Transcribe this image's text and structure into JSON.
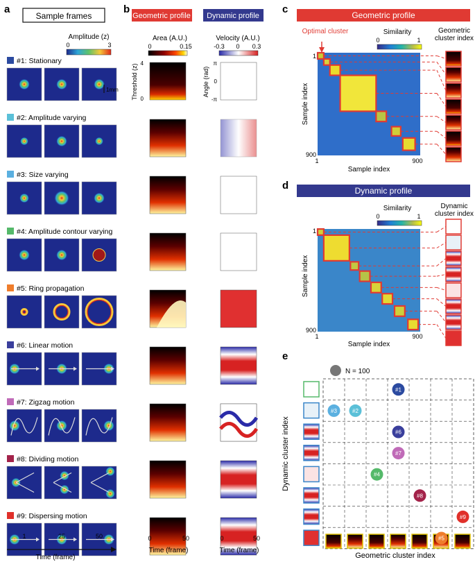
{
  "panels": {
    "a": "a",
    "b": "b",
    "c": "c",
    "d": "d",
    "e": "e"
  },
  "panel_a": {
    "header": "Sample frames",
    "colorbar": {
      "title": "Amplitude (z)",
      "min": "0",
      "max": "3"
    },
    "scalebar": "1mm",
    "patterns": [
      {
        "label": "#1: Stationary",
        "color": "#2b4aa0"
      },
      {
        "label": "#2: Amplitude varying",
        "color": "#5bc0d8"
      },
      {
        "label": "#3: Size varying",
        "color": "#5bb0e0"
      },
      {
        "label": "#4: Amplitude contour varying",
        "color": "#55b96a"
      },
      {
        "label": "#5: Ring propagation",
        "color": "#ef7d2c"
      },
      {
        "label": "#6: Linear motion",
        "color": "#3a3f9c"
      },
      {
        "label": "#7: Zigzag motion",
        "color": "#c06bb8"
      },
      {
        "label": "#8: Dividing motion",
        "color": "#a3234a"
      },
      {
        "label": "#9: Dispersing motion",
        "color": "#e0302a"
      }
    ],
    "frame_ticks": [
      "1",
      "25",
      "50"
    ],
    "xlabel": "Time (frame)"
  },
  "panel_b": {
    "geo_header": "Geometric profile",
    "dyn_header": "Dynamic profile",
    "geo_colorbar": {
      "title": "Area  (A.U.)",
      "min": "0",
      "max": "0.15"
    },
    "dyn_colorbar": {
      "title": "Velocity (A.U.)",
      "min": "-0.3",
      "mid": "0",
      "max": "0.3"
    },
    "geo_ylabel": "Threshold (z)",
    "geo_yticks": [
      "4",
      "0"
    ],
    "dyn_ylabel": "Angle (rad)",
    "dyn_yticks": [
      "π",
      "0",
      "-π"
    ],
    "xticks": [
      "0",
      "50"
    ],
    "xlabel": "Time (frame)"
  },
  "panel_c": {
    "header": "Geometric profile",
    "annotation": "Optimal cluster",
    "colorbar": {
      "title": "Similarity",
      "min": "0",
      "max": "1"
    },
    "side_title": "Geometric cluster index",
    "ylabel": "Sample index",
    "xlabel": "Sample index",
    "ticks": {
      "start": "1",
      "end": "900"
    }
  },
  "panel_d": {
    "header": "Dynamic profile",
    "colorbar": {
      "title": "Similarity",
      "min": "0",
      "max": "1"
    },
    "side_title": "Dynamic cluster index",
    "ylabel": "Sample index",
    "xlabel": "Sample index",
    "ticks": {
      "start": "1",
      "end": "900"
    }
  },
  "panel_e": {
    "legend": "N = 100",
    "ylabel": "Dynamic cluster index",
    "xlabel": "Geometric cluster index",
    "points": [
      {
        "label": "#1",
        "col": 4,
        "row": 1,
        "color": "#2b4aa0"
      },
      {
        "label": "#3",
        "col": 1,
        "row": 2,
        "color": "#5bb0e0"
      },
      {
        "label": "#2",
        "col": 2,
        "row": 2,
        "color": "#5bc0d8"
      },
      {
        "label": "#6",
        "col": 4,
        "row": 3,
        "color": "#3a3f9c"
      },
      {
        "label": "#7",
        "col": 4,
        "row": 4,
        "color": "#c06bb8"
      },
      {
        "label": "#4",
        "col": 3,
        "row": 5,
        "color": "#55b96a"
      },
      {
        "label": "#8",
        "col": 5,
        "row": 6,
        "color": "#a3234a"
      },
      {
        "label": "#9",
        "col": 7,
        "row": 7,
        "color": "#e0302a"
      },
      {
        "label": "#5",
        "col": 6,
        "row": 8,
        "color": "#ef7d2c"
      }
    ]
  }
}
